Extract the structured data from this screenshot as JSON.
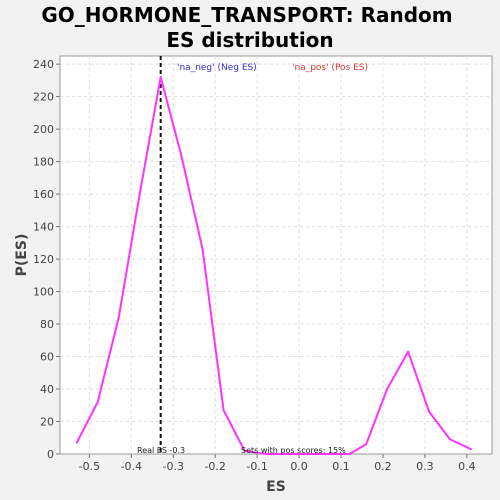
{
  "chart_data": {
    "type": "line",
    "title": "GO_HORMONE_TRANSPORT: Random ES distribution",
    "xlabel": "ES",
    "ylabel": "P(ES)",
    "xlim": [
      -0.57,
      0.46
    ],
    "ylim": [
      0,
      245
    ],
    "xticks": [
      -0.5,
      -0.4,
      -0.3,
      -0.2,
      -0.1,
      0.0,
      0.1,
      0.2,
      0.3,
      0.4
    ],
    "xtick_labels": [
      "-0.5",
      "-0.4",
      "-0.3",
      "-0.2",
      "-0.1",
      "0.0",
      "0.1",
      "0.2",
      "0.3",
      "0.4"
    ],
    "yticks": [
      0,
      20,
      40,
      60,
      80,
      100,
      120,
      140,
      160,
      180,
      200,
      220,
      240
    ],
    "ytick_labels": [
      "0",
      "20",
      "40",
      "60",
      "80",
      "100",
      "120",
      "140",
      "160",
      "180",
      "200",
      "220",
      "240"
    ],
    "grid": true,
    "series": [
      {
        "color": "#ff33ff",
        "x": [
          -0.53,
          -0.48,
          -0.43,
          -0.38,
          -0.33,
          -0.28,
          -0.23,
          -0.18,
          -0.13,
          -0.08,
          -0.03,
          0.02,
          0.07,
          0.12,
          0.16,
          0.21,
          0.26,
          0.31,
          0.36,
          0.41
        ],
        "y": [
          7,
          32,
          84,
          160,
          232,
          183,
          126,
          27,
          2,
          0,
          0,
          0,
          0,
          0,
          6,
          40,
          63,
          26,
          9,
          3
        ]
      }
    ],
    "legend": [
      {
        "label": "'na_neg' (Neg ES)",
        "color": "#3333cc"
      },
      {
        "label": "'na_pos' (Pos ES)",
        "color": "#dd3333"
      }
    ],
    "legend_position": "top-center",
    "real_es": -0.33,
    "annotations": {
      "real_es": "Real ES -0.3",
      "pos_scores": "Sets with pos scores: 15%"
    }
  }
}
